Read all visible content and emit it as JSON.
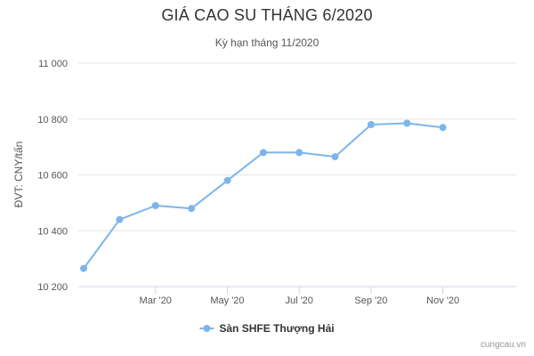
{
  "chart_data": {
    "type": "line",
    "title": "GIÁ CAO SU THÁNG 6/2020",
    "subtitle": "Kỳ hạn tháng 11/2020",
    "ylabel": "ĐVT: CNY/tấn",
    "xlabel": "",
    "ylim": [
      10200,
      11000
    ],
    "yticks": [
      10200,
      10400,
      10600,
      10800,
      11000
    ],
    "ytick_labels": [
      "10 200",
      "10 400",
      "10 600",
      "10 800",
      "11 000"
    ],
    "xlim": [
      0,
      11
    ],
    "xticks": [
      {
        "x": 2,
        "label": "Mar '20"
      },
      {
        "x": 4,
        "label": "May '20"
      },
      {
        "x": 6,
        "label": "Jul '20"
      },
      {
        "x": 8,
        "label": "Sep '20"
      },
      {
        "x": 10,
        "label": "Nov '20"
      }
    ],
    "grid": "horizontal",
    "legend_position": "bottom-center",
    "series": [
      {
        "name": "Sàn SHFE Thượng Hải",
        "color": "#7cb5ec",
        "x": [
          0,
          1,
          2,
          3,
          4,
          5,
          6,
          7,
          8,
          9,
          10
        ],
        "values": [
          10265,
          10440,
          10490,
          10480,
          10580,
          10680,
          10680,
          10665,
          10780,
          10785,
          10770
        ]
      }
    ]
  },
  "watermark": "cungcau.vn"
}
